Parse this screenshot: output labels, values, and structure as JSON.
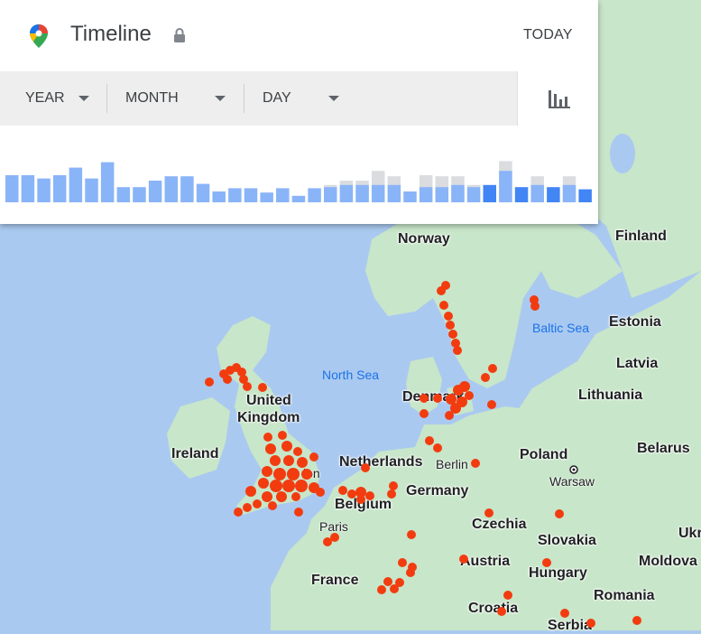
{
  "header": {
    "title": "Timeline",
    "today_label": "TODAY"
  },
  "filters": {
    "year_label": "YEAR",
    "month_label": "MONTH",
    "day_label": "DAY"
  },
  "histogram": {
    "max": 40,
    "bars": [
      {
        "total": 25,
        "highlight": 25
      },
      {
        "total": 25,
        "highlight": 25
      },
      {
        "total": 22,
        "highlight": 22
      },
      {
        "total": 25,
        "highlight": 25
      },
      {
        "total": 32,
        "highlight": 32
      },
      {
        "total": 22,
        "highlight": 22
      },
      {
        "total": 37,
        "highlight": 37
      },
      {
        "total": 14,
        "highlight": 14
      },
      {
        "total": 14,
        "highlight": 14
      },
      {
        "total": 20,
        "highlight": 20
      },
      {
        "total": 24,
        "highlight": 24
      },
      {
        "total": 24,
        "highlight": 24
      },
      {
        "total": 17,
        "highlight": 17
      },
      {
        "total": 10,
        "highlight": 10
      },
      {
        "total": 13,
        "highlight": 13
      },
      {
        "total": 13,
        "highlight": 13
      },
      {
        "total": 9,
        "highlight": 9
      },
      {
        "total": 13,
        "highlight": 13
      },
      {
        "total": 6,
        "highlight": 6
      },
      {
        "total": 13,
        "highlight": 13
      },
      {
        "total": 16,
        "highlight": 14
      },
      {
        "total": 20,
        "highlight": 16
      },
      {
        "total": 20,
        "highlight": 16
      },
      {
        "total": 29,
        "highlight": 16
      },
      {
        "total": 24,
        "highlight": 16
      },
      {
        "total": 10,
        "highlight": 10
      },
      {
        "total": 25,
        "highlight": 14
      },
      {
        "total": 24,
        "highlight": 14
      },
      {
        "total": 24,
        "highlight": 16
      },
      {
        "total": 16,
        "highlight": 14
      },
      {
        "total": 16,
        "highlight": 16
      },
      {
        "total": 38,
        "highlight": 29
      },
      {
        "total": 14,
        "highlight": 14
      },
      {
        "total": 24,
        "highlight": 16
      },
      {
        "total": 14,
        "highlight": 14
      },
      {
        "total": 24,
        "highlight": 16
      },
      {
        "total": 12,
        "highlight": 12
      }
    ]
  },
  "map": {
    "labels": {
      "norway": "Norway",
      "finland": "Finland",
      "estonia": "Estonia",
      "latvia": "Latvia",
      "lithuania": "Lithuania",
      "united_kingdom_1": "United",
      "united_kingdom_2": "Kingdom",
      "ireland": "Ireland",
      "denmark": "Denmark",
      "netherlands": "Netherlands",
      "belgium": "Belgium",
      "germany": "Germany",
      "poland": "Poland",
      "belarus": "Belarus",
      "czechia": "Czechia",
      "slovakia": "Slovakia",
      "austria": "Austria",
      "hungary": "Hungary",
      "france": "France",
      "croatia": "Croatia",
      "romania": "Romania",
      "moldova": "Moldova",
      "serbia": "Serbia",
      "ukraine": "Ukr"
    },
    "seas": {
      "north_sea": "North Sea",
      "baltic_sea": "Baltic Sea"
    },
    "cities": {
      "berlin": "Berlin",
      "warsaw": "Warsaw",
      "paris": "Paris",
      "london": "lon"
    },
    "colors": {
      "visit_dot": "#f23c10",
      "land": "#c8e6c9",
      "water": "#aac9f0",
      "bar_light": "#8ab4f8",
      "bar_dark": "#4285f4",
      "bar_gray": "#dadce0"
    }
  }
}
